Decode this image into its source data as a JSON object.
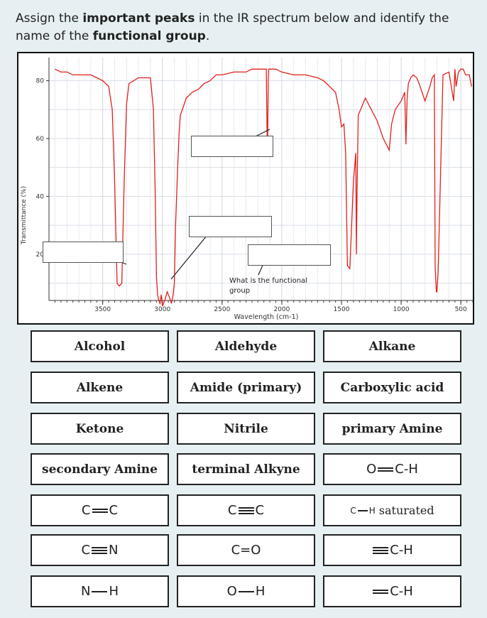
{
  "question": {
    "part1": "Assign the ",
    "bold1": "important peaks",
    "part2": " in the IR spectrum below and identify the name of the ",
    "bold2": "functional group",
    "part3": "."
  },
  "spectrum": {
    "ylabel": "Transmittance (%)",
    "xlabel": "Wavelength (cm-1)",
    "y_ticks": [
      "80",
      "60",
      "40",
      "20"
    ],
    "x_ticks": [
      "3500",
      "3000",
      "2500",
      "2000",
      "1500",
      "1000",
      "500"
    ],
    "annotation_line1": "What is the functional",
    "annotation_line2": "group",
    "line_color": "#e0201b"
  },
  "chart_data": {
    "type": "line",
    "xlabel": "Wavelength (cm-1)",
    "ylabel": "Transmittance (%)",
    "xlim": [
      3950,
      400
    ],
    "ylim": [
      4,
      88
    ],
    "grid": true,
    "series": [
      {
        "x": [
          3900,
          3850,
          3800,
          3750,
          3700,
          3650,
          3600,
          3550,
          3500,
          3450,
          3420,
          3400,
          3380,
          3360,
          3340,
          3320,
          3300,
          3280,
          3200,
          3150,
          3100,
          3075,
          3060,
          3050,
          3040,
          3030,
          3020,
          3010,
          3000,
          2990,
          2980,
          2960,
          2940,
          2925,
          2910,
          2900,
          2890,
          2870,
          2860,
          2850,
          2800,
          2750,
          2700,
          2650,
          2600,
          2550,
          2500,
          2400,
          2300,
          2250,
          2200,
          2150,
          2130,
          2122,
          2118,
          2114,
          2110,
          2100,
          2050,
          2000,
          1900,
          1800,
          1700,
          1650,
          1600,
          1550,
          1520,
          1500,
          1480,
          1465,
          1450,
          1430,
          1400,
          1380,
          1375,
          1370,
          1360,
          1300,
          1250,
          1200,
          1150,
          1100,
          1080,
          1050,
          1000,
          970,
          960,
          950,
          940,
          930,
          920,
          900,
          870,
          850,
          800,
          760,
          740,
          722,
          715,
          705,
          700,
          690,
          650,
          600,
          560,
          550,
          540,
          520,
          500,
          480,
          460,
          430,
          410
        ],
        "values": [
          84,
          83,
          83,
          82,
          82,
          82,
          82,
          81,
          80,
          78,
          70,
          45,
          10,
          9,
          10,
          45,
          72,
          79,
          81,
          81,
          81,
          70,
          40,
          12,
          6,
          4,
          3,
          6,
          2,
          3,
          4,
          7,
          5,
          3,
          6,
          10,
          30,
          52,
          62,
          68,
          74,
          76,
          77,
          79,
          80,
          82,
          82,
          83,
          83,
          84,
          84,
          84,
          84,
          58,
          60,
          80,
          84,
          84,
          84,
          83,
          82,
          82,
          81,
          80,
          78,
          76,
          70,
          64,
          65,
          55,
          16,
          15,
          45,
          55,
          20,
          40,
          68,
          74,
          70,
          66,
          60,
          56,
          65,
          70,
          73,
          76,
          58,
          74,
          79,
          80,
          81,
          82,
          81,
          79,
          73,
          78,
          81,
          82,
          15,
          7,
          7,
          14,
          82,
          83,
          73,
          84,
          78,
          83,
          84,
          84,
          82,
          82,
          78
        ]
      }
    ]
  },
  "tiles": {
    "row1": [
      "Alcohol",
      "Aldehyde",
      "Alkane"
    ],
    "row2": [
      "Alkene",
      "Amide (primary)",
      "Carboxylic acid"
    ],
    "row3": [
      "Ketone",
      "Nitrile",
      "primary Amine"
    ],
    "row4": [
      "secondary Amine",
      "terminal Alkyne"
    ],
    "formulas": {
      "aldehyde_ch": {
        "left": "O",
        "right": "C-H"
      },
      "alkene_cc": {
        "left": "C",
        "right": "C"
      },
      "alkyne_cc": {
        "left": "C",
        "right": "C"
      },
      "ch_saturated": {
        "left": "C",
        "right": "H",
        "suffix": "saturated"
      },
      "nitrile_cn": {
        "left": "C",
        "right": "N"
      },
      "carbonyl_co": {
        "left": "C=O"
      },
      "alkyne_ch": {
        "right": "C-H"
      },
      "amine_nh": {
        "left": "N",
        "right": "H"
      },
      "hydroxyl_oh": {
        "left": "O",
        "right": "H"
      },
      "alkene_ch": {
        "right": "C-H"
      }
    }
  }
}
